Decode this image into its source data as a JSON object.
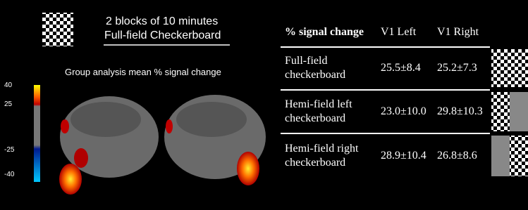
{
  "header": {
    "line1": "2 blocks of 10 minutes",
    "line2": "Full-field Checkerboard"
  },
  "brain_panel": {
    "title": "Group analysis mean % signal change"
  },
  "colorbar": {
    "labels": [
      "40",
      "25",
      "-25",
      "-40"
    ]
  },
  "table": {
    "header": [
      "% signal change",
      "V1 Left",
      "V1 Right"
    ],
    "rows": [
      [
        "Full-field checkerboard",
        "25.5±8.4",
        "25.2±7.3"
      ],
      [
        "Hemi-field left checkerboard",
        "23.0±10.0",
        "29.8±10.3"
      ],
      [
        "Hemi-field right checkerboard",
        "28.9±10.4",
        "26.8±8.6"
      ]
    ]
  }
}
